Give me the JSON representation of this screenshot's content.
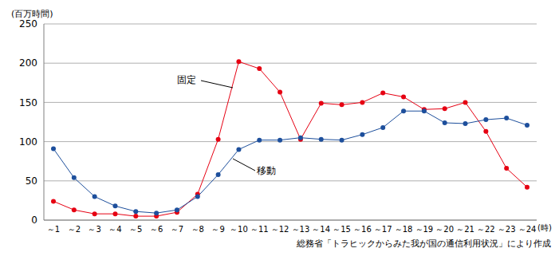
{
  "chart_data": {
    "type": "line",
    "y_label": "(百万時間)",
    "x_label": "(時)",
    "source": "総務省「トラヒックからみた我が国の通信利用状況」により作成",
    "categories": [
      "～1",
      "～2",
      "～3",
      "～4",
      "～5",
      "～6",
      "～7",
      "～8",
      "～9",
      "～10",
      "～11",
      "～12",
      "～13",
      "～14",
      "～15",
      "～16",
      "～17",
      "～18",
      "～19",
      "～20",
      "～21",
      "～22",
      "～23",
      "～24"
    ],
    "series": [
      {
        "name": "固定",
        "color": "#e60012",
        "marker": "circle",
        "values": [
          24,
          13,
          8,
          8,
          5,
          5,
          10,
          33,
          103,
          202,
          193,
          163,
          103,
          149,
          147,
          150,
          162,
          157,
          141,
          142,
          150,
          113,
          66,
          42
        ]
      },
      {
        "name": "移動",
        "color": "#1d4f9c",
        "marker": "circle",
        "values": [
          91,
          54,
          30,
          18,
          11,
          9,
          13,
          30,
          58,
          90,
          102,
          102,
          105,
          103,
          102,
          109,
          118,
          139,
          139,
          124,
          123,
          128,
          130,
          121
        ]
      }
    ],
    "ylim": [
      0,
      250
    ],
    "yticks": [
      0,
      50,
      100,
      150,
      200,
      250
    ],
    "grid": true
  }
}
